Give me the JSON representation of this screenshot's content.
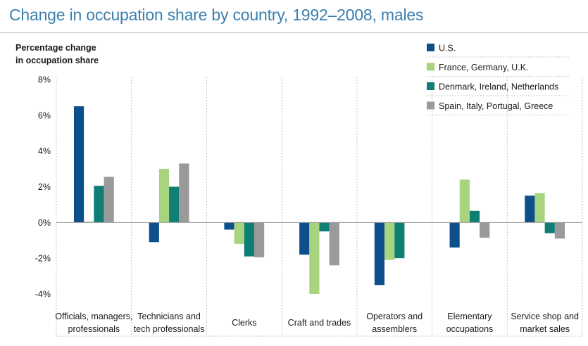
{
  "title": "Change in occupation share by country, 1992–2008, males",
  "colors": {
    "title": "#3b7fae",
    "series": [
      "#0d4f8b",
      "#a9d47f",
      "#0f7e74",
      "#9a9a9a"
    ]
  },
  "chart_data": {
    "type": "bar",
    "title": "Change in occupation share by country, 1992–2008, males",
    "ylabel": [
      "Percentage change",
      "in occupation share"
    ],
    "xlabel": "",
    "ylim": [
      -4,
      8
    ],
    "yticks": [
      8,
      6,
      4,
      2,
      0,
      -2,
      -4
    ],
    "ytick_labels": [
      "8%",
      "6%",
      "4%",
      "2%",
      "0%",
      "-2%",
      "-4%"
    ],
    "grid": false,
    "legend_position": "top-right",
    "categories": [
      [
        "Officials, managers,",
        "professionals"
      ],
      [
        "Technicians and",
        "tech professionals"
      ],
      [
        "Clerks"
      ],
      [
        "Craft and trades"
      ],
      [
        "Operators and",
        "assemblers"
      ],
      [
        "Elementary",
        "occupations"
      ],
      [
        "Service shop and",
        "market sales"
      ]
    ],
    "series": [
      {
        "name": "U.S.",
        "values": [
          6.5,
          -1.1,
          -0.4,
          -1.8,
          -3.5,
          -1.4,
          1.5
        ]
      },
      {
        "name": "France, Germany, U.K.",
        "values": [
          0.05,
          3.0,
          -1.2,
          -4.0,
          -2.1,
          2.4,
          1.65
        ]
      },
      {
        "name": "Denmark, Ireland, Netherlands",
        "values": [
          2.05,
          2.0,
          -1.9,
          -0.5,
          -2.0,
          0.65,
          -0.6
        ]
      },
      {
        "name": "Spain, Italy, Portugal, Greece",
        "values": [
          2.55,
          3.3,
          -1.95,
          -2.4,
          0.0,
          -0.85,
          -0.9
        ]
      }
    ]
  }
}
